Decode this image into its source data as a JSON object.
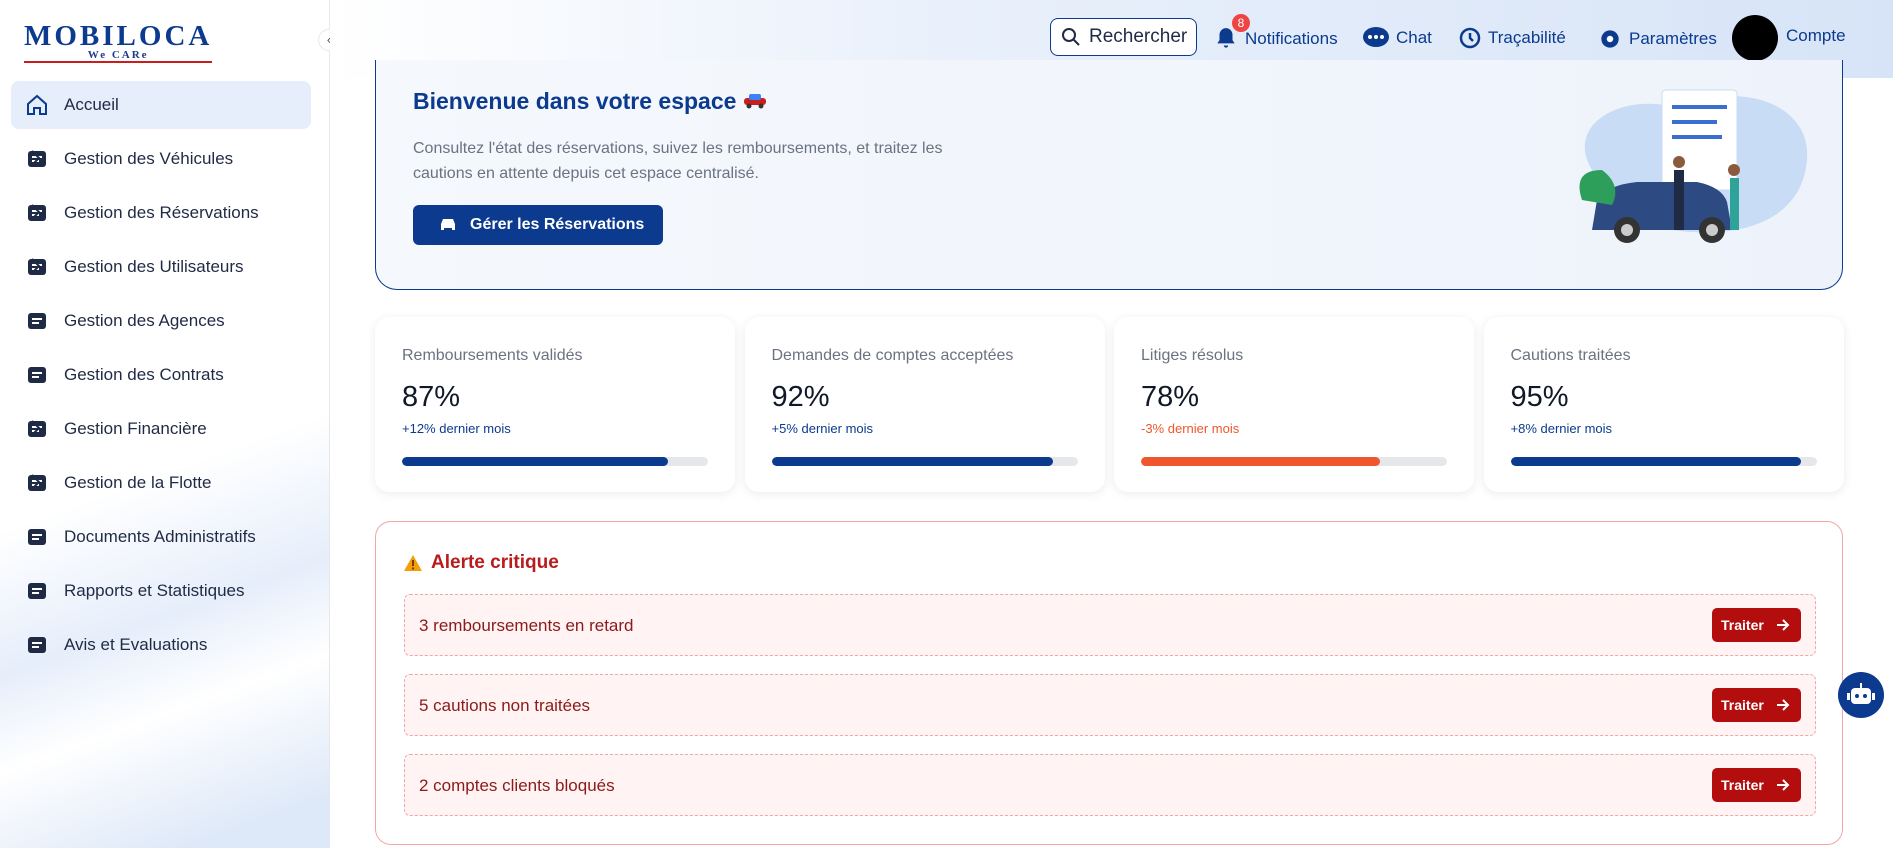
{
  "header": {
    "logo": "MOBILOCA",
    "tagline": "We CARe",
    "search": "Rechercher",
    "notifications_count": "8",
    "items": [
      "Notifications",
      "Chat",
      "Traçabilité",
      "Paramètres",
      "Compte"
    ]
  },
  "sidebar": {
    "items": [
      "Accueil",
      "Gestion des Véhicules",
      "Gestion des Réservations",
      "Gestion des Utilisateurs",
      "Gestion des Agences",
      "Gestion des Contrats",
      "Gestion Financière",
      "Gestion de la Flotte",
      "Documents Administratifs",
      "Rapports et Statistiques",
      "Avis et Evaluations"
    ]
  },
  "welcome": {
    "title": "Bienvenue dans votre espace",
    "text": "Consultez l'état des réservations, suivez les remboursements, et traitez les cautions en attente depuis cet espace centralisé.",
    "button": "Gérer les Réservations"
  },
  "cards": [
    {
      "title": "Remboursements validés",
      "value": 87,
      "value_label": "87%",
      "change": "+12% dernier mois"
    },
    {
      "title": "Demandes de comptes acceptées",
      "value": 92,
      "value_label": "92%",
      "change": "+5% dernier mois"
    },
    {
      "title": "Litiges résolus",
      "value": 78,
      "value_label": "78%",
      "change": "-3% dernier mois"
    },
    {
      "title": "Cautions traitées",
      "value": 95,
      "value_label": "95%",
      "change": "+8% dernier mois"
    }
  ],
  "alert": {
    "title": "Alerte critique",
    "items": [
      {
        "text": "3 remboursements en retard",
        "button": "Traiter"
      },
      {
        "text": "5 cautions non traitées",
        "button": "Traiter"
      },
      {
        "text": "2 comptes clients bloqués",
        "button": "Traiter"
      }
    ]
  }
}
